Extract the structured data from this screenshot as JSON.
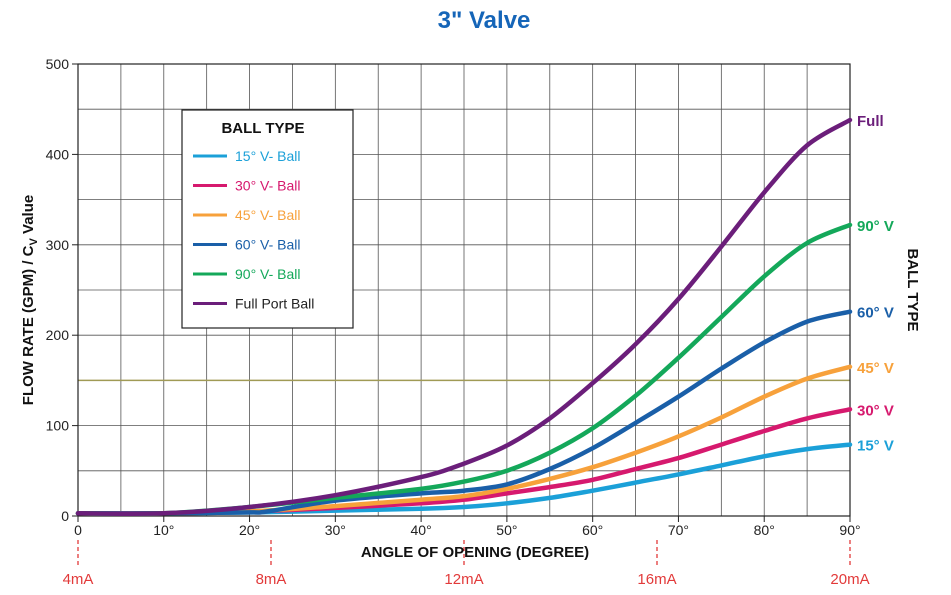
{
  "chart_data": {
    "type": "line",
    "title": "3\" Valve",
    "xlabel": "ANGLE OF OPENING (DEGREE)",
    "ylabel_main": "FLOW RATE (GPM) / C",
    "ylabel_sub": "V",
    "ylabel_tail": " Value",
    "right_label": "BALL TYPE",
    "xlim": [
      0,
      90
    ],
    "ylim": [
      0,
      500
    ],
    "x_ticks": [
      0,
      10,
      20,
      30,
      40,
      50,
      60,
      70,
      80,
      90
    ],
    "x_tick_labels": [
      "0",
      "10°",
      "20°",
      "30°",
      "40°",
      "50°",
      "60°",
      "70°",
      "80°",
      "90°"
    ],
    "y_ticks": [
      0,
      100,
      200,
      300,
      400,
      500
    ],
    "y_tick_labels": [
      "0",
      "100",
      "200",
      "300",
      "400",
      "500"
    ],
    "grid": true,
    "reference_line": {
      "y": 150,
      "color": "#a09a55"
    },
    "ma_markers": [
      {
        "label": "4mA",
        "x": 0
      },
      {
        "label": "8mA",
        "x": 22.5
      },
      {
        "label": "12mA",
        "x": 45
      },
      {
        "label": "16mA",
        "x": 67.5
      },
      {
        "label": "20mA",
        "x": 90
      }
    ],
    "legend": {
      "title": "BALL TYPE",
      "position": "top-left"
    },
    "series": [
      {
        "name": "15°  V- Ball",
        "end_label": "15° V",
        "color": "#1ba0d8",
        "x": [
          0,
          10,
          20,
          30,
          40,
          45,
          50,
          55,
          60,
          65,
          70,
          75,
          80,
          85,
          90
        ],
        "y": [
          3,
          3,
          4,
          6,
          8,
          10,
          14,
          20,
          28,
          37,
          46,
          56,
          66,
          74,
          79
        ]
      },
      {
        "name": "30°  V- Ball",
        "end_label": "30° V",
        "color": "#d6196e",
        "x": [
          0,
          10,
          20,
          30,
          40,
          45,
          50,
          55,
          60,
          65,
          70,
          75,
          80,
          85,
          90
        ],
        "y": [
          3,
          3,
          5,
          9,
          14,
          18,
          25,
          32,
          40,
          52,
          64,
          79,
          94,
          108,
          118
        ]
      },
      {
        "name": "45°  V- Ball",
        "end_label": "45° V",
        "color": "#f7a13b",
        "x": [
          0,
          10,
          20,
          30,
          40,
          45,
          50,
          55,
          60,
          65,
          70,
          75,
          80,
          85,
          90
        ],
        "y": [
          3,
          3,
          5,
          11,
          18,
          22,
          30,
          41,
          54,
          70,
          88,
          109,
          132,
          152,
          165
        ]
      },
      {
        "name": "60°  V- Ball",
        "end_label": "60° V",
        "color": "#1a5fa8",
        "x": [
          0,
          10,
          20,
          22,
          30,
          40,
          45,
          50,
          55,
          60,
          65,
          70,
          75,
          80,
          85,
          90
        ],
        "y": [
          3,
          3,
          4,
          5,
          17,
          25,
          28,
          35,
          52,
          75,
          103,
          132,
          163,
          192,
          215,
          226
        ]
      },
      {
        "name": "90°  V- Ball",
        "end_label": "90° V",
        "color": "#14a85a",
        "x": [
          0,
          10,
          20,
          30,
          40,
          45,
          50,
          55,
          60,
          65,
          70,
          75,
          80,
          85,
          90
        ],
        "y": [
          3,
          3,
          10,
          20,
          30,
          38,
          50,
          70,
          97,
          133,
          175,
          220,
          265,
          302,
          322
        ]
      },
      {
        "name": "Full Port Ball",
        "end_label": "Full",
        "color": "#6b1e7a",
        "x": [
          0,
          10,
          20,
          30,
          40,
          45,
          50,
          55,
          60,
          65,
          70,
          75,
          80,
          85,
          90
        ],
        "y": [
          3,
          3,
          10,
          23,
          43,
          58,
          78,
          108,
          147,
          190,
          240,
          298,
          358,
          410,
          438
        ]
      }
    ]
  }
}
